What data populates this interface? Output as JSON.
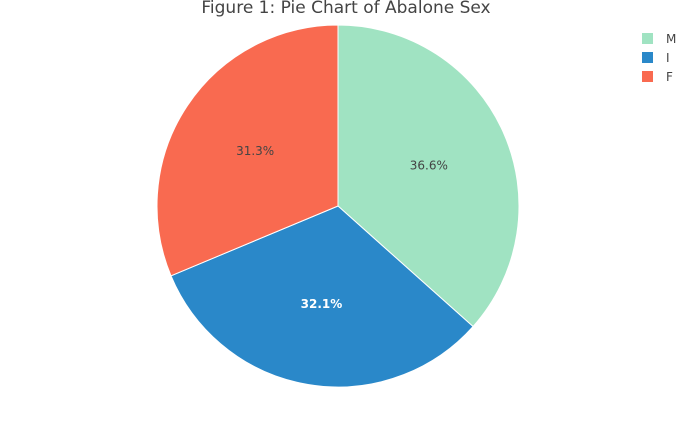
{
  "chart_data": {
    "type": "pie",
    "title": "Figure 1: Pie Chart of Abalone Sex",
    "labels": [
      "M",
      "I",
      "F"
    ],
    "values": [
      36.6,
      32.1,
      31.3
    ],
    "value_labels": [
      "36.6%",
      "32.1%",
      "31.3%"
    ],
    "colors": [
      "#a0e3c2",
      "#2a88c9",
      "#f96a50"
    ],
    "label_colors": [
      "#444444",
      "#ffffff",
      "#444444"
    ],
    "legend": {
      "placement": "top-right",
      "items": [
        "M",
        "I",
        "F"
      ]
    }
  }
}
